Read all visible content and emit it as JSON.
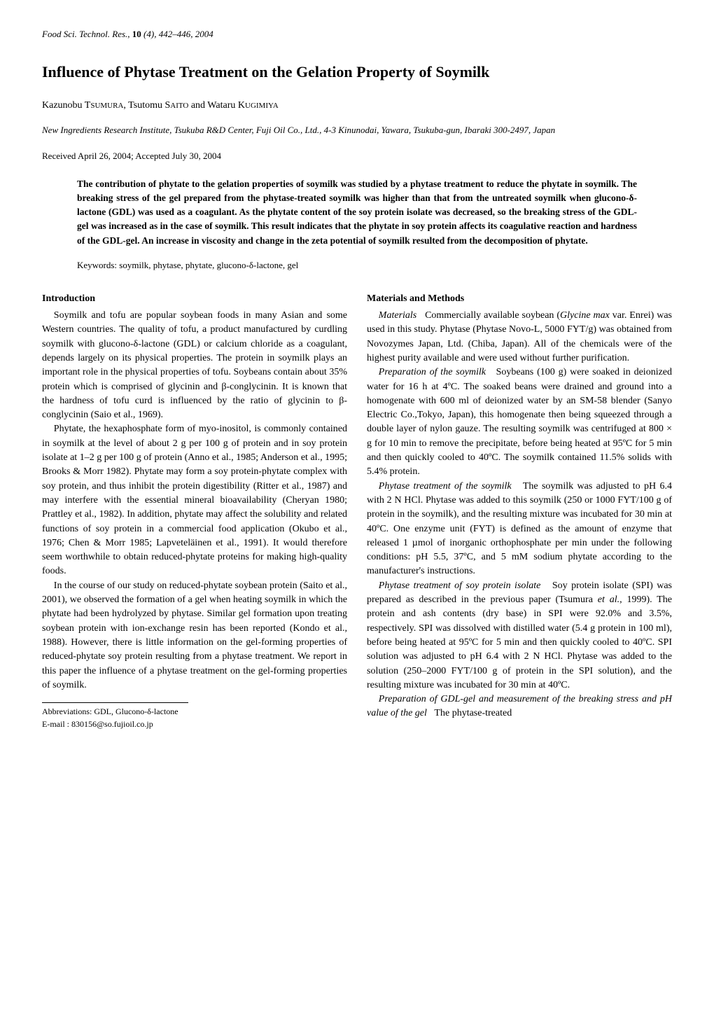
{
  "journal": {
    "name": "Food Sci. Technol. Res.,",
    "volume": "10",
    "issue": "(4),",
    "pages": "442–446,",
    "year": "2004"
  },
  "title": "Influence of Phytase Treatment on the Gelation Property of Soymilk",
  "authors": "Kazunobu TSUMURA, Tsutomu SAITO and Wataru KUGIMIYA",
  "affiliation": "New Ingredients Research Institute, Tsukuba R&D Center, Fuji Oil Co., Ltd., 4-3 Kinunodai, Yawara, Tsukuba-gun, Ibaraki 300-2497, Japan",
  "received": "Received April 26, 2004; Accepted July 30, 2004",
  "abstract": "The contribution of phytate to the gelation properties of soymilk was studied by a phytase treatment to reduce the phytate in soymilk. The breaking stress of the gel prepared from the phytase-treated soymilk was higher than that from the untreated soymilk when glucono-δ-lactone (GDL) was used as a coagulant. As the phytate content of the soy protein isolate was decreased, so the breaking stress of the GDL-gel was increased as in the case of soymilk. This result indicates that the phytate in soy protein affects its coagulative reaction and hardness of the GDL-gel. An increase in viscosity and change in the zeta potential of soymilk resulted from the decomposition of phytate.",
  "keywords": "Keywords: soymilk, phytase, phytate, glucono-δ-lactone, gel",
  "left_column": {
    "heading": "Introduction",
    "p1": "Soymilk and tofu are popular soybean foods in many Asian and some Western countries. The quality of tofu, a product manufactured by curdling soymilk with glucono-δ-lactone (GDL) or calcium chloride as a coagulant, depends largely on its physical properties. The protein in soymilk plays an important role in the physical properties of tofu. Soybeans contain about 35% protein which is comprised of glycinin and β-conglycinin. It is known that the hardness of tofu curd is influenced by the ratio of glycinin to β-conglycinin (Saio et al., 1969).",
    "p2": "Phytate, the hexaphosphate form of myo-inositol, is commonly contained in soymilk at the level of about 2 g per 100 g of protein and in soy protein isolate at 1–2 g per 100 g of protein (Anno et al., 1985; Anderson et al., 1995; Brooks & Morr 1982). Phytate may form a soy protein-phytate complex with soy protein, and thus inhibit the protein digestibility (Ritter et al., 1987) and may interfere with the essential mineral bioavailability (Cheryan 1980; Prattley et al., 1982). In addition, phytate may affect the solubility and related functions of soy protein in a commercial food application (Okubo et al., 1976; Chen & Morr 1985; Lapveteläinen et al., 1991). It would therefore seem worthwhile to obtain reduced-phytate proteins for making high-quality foods.",
    "p3": "In the course of our study on reduced-phytate soybean protein (Saito et al., 2001), we observed the formation of a gel when heating soymilk in which the phytate had been hydrolyzed by phytase. Similar gel formation upon treating soybean protein with ion-exchange resin has been reported (Kondo et al., 1988). However, there is little information on the gel-forming properties of reduced-phytate soy protein resulting from a phytase treatment. We report in this paper the influence of a phytase treatment on the gel-forming properties of soymilk."
  },
  "right_column": {
    "heading": "Materials and Methods",
    "s1_title": "Materials",
    "s1_text": "Commercially available soybean (Glycine max var. Enrei) was used in this study. Phytase (Phytase Novo-L, 5000 FYT/g) was obtained from Novozymes Japan, Ltd. (Chiba, Japan). All of the chemicals were of the highest purity available and were used without further purification.",
    "s2_title": "Preparation of the soymilk",
    "s2_text": "Soybeans (100 g) were soaked in deionized water for 16 h at 4ºC. The soaked beans were drained and ground into a homogenate with 600 ml of deionized water by an SM-58 blender (Sanyo Electric Co.,Tokyo, Japan), this homogenate then being squeezed through a double layer of nylon gauze. The resulting soymilk was centrifuged at 800 × g for 10 min to remove the precipitate, before being heated at 95ºC for 5 min and then quickly cooled to 40ºC. The soymilk contained 11.5% solids with 5.4% protein.",
    "s3_title": "Phytase treatment of the soymilk",
    "s3_text": "The soymilk was adjusted to pH 6.4 with 2 N HCl. Phytase was added to this soymilk (250 or 1000 FYT/100 g of protein in the soymilk), and the resulting mixture was incubated for 30 min at 40ºC. One enzyme unit (FYT) is defined as the amount of enzyme that released 1 µmol of inorganic orthophosphate per min under the following conditions: pH 5.5, 37ºC, and 5 mM sodium phytate according to the manufacturer's instructions.",
    "s4_title": "Phytase treatment of soy protein isolate",
    "s4_text": "Soy protein isolate (SPI) was prepared as described in the previous paper (Tsumura et al., 1999). The protein and ash contents (dry base) in SPI were 92.0% and 3.5%, respectively. SPI was dissolved with distilled water (5.4 g protein in 100 ml), before being heated at 95ºC for 5 min and then quickly cooled to 40ºC. SPI solution was adjusted to pH 6.4 with 2 N HCl. Phytase was added to the solution (250–2000 FYT/100 g of protein in the SPI solution), and the resulting mixture was incubated for 30 min at 40ºC.",
    "s5_title": "Preparation of GDL-gel and measurement of the breaking stress and pH value of the gel",
    "s5_text": "The phytase-treated"
  },
  "footer": {
    "abbrev": "Abbreviations: GDL, Glucono-δ-lactone",
    "email": "E-mail : 830156@so.fujioil.co.jp"
  }
}
